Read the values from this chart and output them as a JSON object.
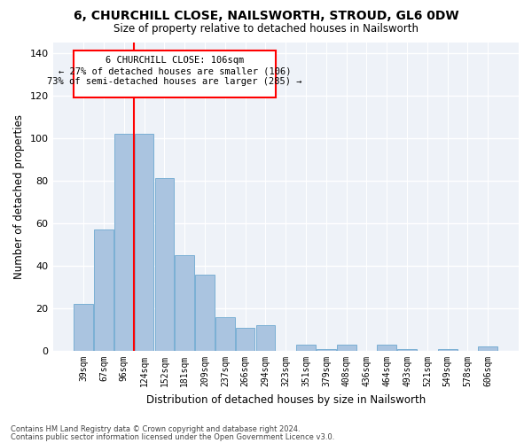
{
  "title": "6, CHURCHILL CLOSE, NAILSWORTH, STROUD, GL6 0DW",
  "subtitle": "Size of property relative to detached houses in Nailsworth",
  "xlabel": "Distribution of detached houses by size in Nailsworth",
  "ylabel": "Number of detached properties",
  "categories": [
    "39sqm",
    "67sqm",
    "96sqm",
    "124sqm",
    "152sqm",
    "181sqm",
    "209sqm",
    "237sqm",
    "266sqm",
    "294sqm",
    "323sqm",
    "351sqm",
    "379sqm",
    "408sqm",
    "436sqm",
    "464sqm",
    "493sqm",
    "521sqm",
    "549sqm",
    "578sqm",
    "606sqm"
  ],
  "values": [
    22,
    57,
    102,
    102,
    81,
    45,
    36,
    16,
    11,
    12,
    0,
    3,
    1,
    3,
    0,
    3,
    1,
    0,
    1,
    0,
    2
  ],
  "bar_color": "#aac4e0",
  "bar_edge_color": "#7aafd4",
  "annotation_text_line1": "6 CHURCHILL CLOSE: 106sqm",
  "annotation_text_line2": "← 27% of detached houses are smaller (106)",
  "annotation_text_line3": "73% of semi-detached houses are larger (285) →",
  "vline_color": "red",
  "vline_x_idx": 2.5,
  "ylim": [
    0,
    145
  ],
  "yticks": [
    0,
    20,
    40,
    60,
    80,
    100,
    120,
    140
  ],
  "background_color": "#eef2f8",
  "footer_line1": "Contains HM Land Registry data © Crown copyright and database right 2024.",
  "footer_line2": "Contains public sector information licensed under the Open Government Licence v3.0."
}
